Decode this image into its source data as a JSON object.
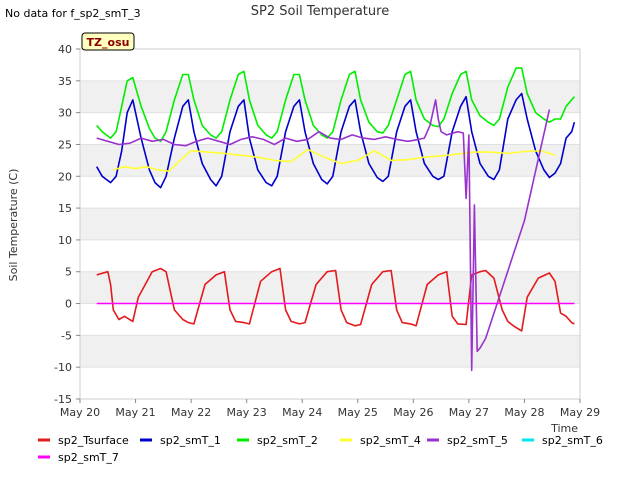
{
  "chart_data": {
    "type": "line",
    "title": "SP2 Soil Temperature",
    "note": "No data for f_sp2_smT_3",
    "badge": "TZ_osu",
    "xlabel": "Time",
    "ylabel": "Soil Temperature (C)",
    "ylim": [
      -15,
      40
    ],
    "yticks": [
      -15,
      -10,
      -5,
      0,
      5,
      10,
      15,
      20,
      25,
      30,
      35,
      40
    ],
    "xlim": [
      0,
      9
    ],
    "xtick_values": [
      0,
      1,
      2,
      3,
      4,
      5,
      6,
      7,
      8,
      9
    ],
    "xtick_labels": [
      "May 20",
      "May 21",
      "May 22",
      "May 23",
      "May 24",
      "May 25",
      "May 26",
      "May 27",
      "May 28",
      "May 29"
    ],
    "grid": "horizontal bands",
    "legend_position": "bottom",
    "series": [
      {
        "name": "sp2_Tsurface",
        "color": "#e41a1c",
        "x": [
          0.3,
          0.5,
          0.55,
          0.6,
          0.7,
          0.8,
          0.95,
          1.05,
          1.3,
          1.45,
          1.55,
          1.7,
          1.85,
          1.95,
          2.05,
          2.25,
          2.45,
          2.6,
          2.7,
          2.8,
          2.95,
          3.05,
          3.25,
          3.45,
          3.6,
          3.7,
          3.8,
          3.95,
          4.05,
          4.25,
          4.45,
          4.6,
          4.7,
          4.8,
          4.95,
          5.05,
          5.25,
          5.45,
          5.6,
          5.7,
          5.8,
          5.95,
          6.05,
          6.25,
          6.45,
          6.6,
          6.7,
          6.8,
          6.95,
          7.05,
          7.2,
          7.3,
          7.45,
          7.6,
          7.7,
          7.8,
          7.95,
          8.05,
          8.25,
          8.45,
          8.55,
          8.65,
          8.75,
          8.85,
          8.9
        ],
        "y": [
          4.5,
          5,
          3,
          -1,
          -2.5,
          -2,
          -2.8,
          1,
          5,
          5.5,
          5,
          -1,
          -2.5,
          -3,
          -3.2,
          3,
          4.5,
          5,
          -1,
          -2.8,
          -3,
          -3.2,
          3.5,
          5,
          5.5,
          -1,
          -2.8,
          -3.2,
          -3,
          3,
          5,
          5.2,
          -1,
          -3,
          -3.5,
          -3.3,
          3,
          5,
          5.2,
          -1,
          -3,
          -3.2,
          -3.5,
          3,
          4.5,
          5,
          -2,
          -3.2,
          -3.3,
          4.5,
          5,
          5.2,
          4,
          -1,
          -2.8,
          -3.5,
          -4.3,
          1,
          4,
          4.8,
          3.5,
          -1.5,
          -2,
          -3,
          -3.2
        ]
      },
      {
        "name": "sp2_smT_1",
        "color": "#0000cc",
        "x": [
          0.3,
          0.4,
          0.55,
          0.65,
          0.75,
          0.85,
          0.95,
          1.1,
          1.25,
          1.35,
          1.45,
          1.55,
          1.7,
          1.85,
          1.95,
          2.05,
          2.2,
          2.35,
          2.45,
          2.55,
          2.7,
          2.85,
          2.95,
          3.05,
          3.2,
          3.35,
          3.45,
          3.55,
          3.7,
          3.85,
          3.95,
          4.05,
          4.2,
          4.35,
          4.45,
          4.55,
          4.7,
          4.85,
          4.95,
          5.05,
          5.2,
          5.35,
          5.45,
          5.55,
          5.7,
          5.85,
          5.95,
          6.05,
          6.2,
          6.35,
          6.45,
          6.55,
          6.7,
          6.85,
          6.95,
          7.05,
          7.2,
          7.35,
          7.45,
          7.55,
          7.7,
          7.85,
          7.95,
          8.05,
          8.2,
          8.35,
          8.45,
          8.55,
          8.65,
          8.75,
          8.85,
          8.9
        ],
        "y": [
          21.5,
          20,
          19,
          20,
          24,
          30,
          32,
          26,
          21,
          19,
          18.2,
          20,
          26,
          31,
          32,
          27,
          22,
          19.5,
          18.5,
          20,
          27,
          31,
          32,
          26,
          21,
          19,
          18.5,
          20,
          27,
          31,
          32,
          27,
          22,
          19.5,
          18.8,
          20,
          27,
          31,
          32,
          27,
          22,
          19.8,
          19.2,
          20,
          27,
          31,
          32,
          27,
          22,
          20,
          19.5,
          20,
          27,
          31,
          32.5,
          27,
          22,
          20,
          19.5,
          21,
          29,
          32,
          33,
          29,
          24,
          21,
          19.8,
          20.5,
          22,
          26,
          27,
          28.5
        ]
      },
      {
        "name": "sp2_smT_2",
        "color": "#00ee00",
        "x": [
          0.3,
          0.4,
          0.55,
          0.65,
          0.75,
          0.85,
          0.95,
          1.1,
          1.25,
          1.35,
          1.45,
          1.55,
          1.7,
          1.85,
          1.95,
          2.05,
          2.2,
          2.35,
          2.45,
          2.55,
          2.7,
          2.85,
          2.95,
          3.05,
          3.2,
          3.35,
          3.45,
          3.55,
          3.7,
          3.85,
          3.95,
          4.05,
          4.2,
          4.35,
          4.45,
          4.55,
          4.7,
          4.85,
          4.95,
          5.05,
          5.2,
          5.35,
          5.45,
          5.55,
          5.7,
          5.85,
          5.95,
          6.05,
          6.2,
          6.35,
          6.45,
          6.55,
          6.7,
          6.85,
          6.95,
          7.05,
          7.2,
          7.35,
          7.45,
          7.55,
          7.7,
          7.85,
          7.95,
          8.05,
          8.2,
          8.35,
          8.45,
          8.55,
          8.65,
          8.75,
          8.85,
          8.9
        ],
        "y": [
          28,
          27,
          26,
          27,
          31,
          35,
          35.5,
          31,
          27.5,
          26,
          25.5,
          27,
          32,
          36,
          36,
          32,
          28,
          26.5,
          26,
          27,
          32,
          36,
          36.5,
          32,
          28,
          26.5,
          26,
          27,
          32,
          36,
          36,
          32,
          28,
          26.5,
          26,
          27,
          32,
          36,
          36.5,
          32,
          28.5,
          27,
          26.8,
          28,
          32,
          36,
          36.5,
          32,
          29,
          28,
          27.8,
          29,
          33,
          36,
          36.5,
          32,
          29.5,
          28.5,
          28,
          29,
          34,
          37,
          37,
          33,
          30,
          29,
          28.5,
          29,
          29,
          31,
          32,
          32.5
        ]
      },
      {
        "name": "sp2_smT_4",
        "color": "#ffff33",
        "x": [
          0.6,
          0.8,
          1.0,
          1.2,
          1.4,
          1.6,
          1.8,
          2.0,
          2.3,
          2.6,
          2.9,
          3.2,
          3.5,
          3.8,
          4.1,
          4.4,
          4.7,
          5.0,
          5.3,
          5.6,
          5.9,
          6.2,
          6.5,
          6.8,
          7.1,
          7.4,
          7.7,
          8.0,
          8.3,
          8.55
        ],
        "y": [
          21,
          21.5,
          21.2,
          21.5,
          21,
          20.8,
          22.5,
          24,
          23.8,
          23.6,
          23.3,
          23,
          22.5,
          22.3,
          24.2,
          23,
          22,
          22.5,
          24,
          22.5,
          22.6,
          23,
          23.2,
          23.5,
          23.8,
          23.8,
          23.6,
          23.9,
          24,
          23.3
        ]
      },
      {
        "name": "sp2_smT_5",
        "color": "#9933cc",
        "x": [
          0.3,
          0.5,
          0.7,
          0.9,
          1.1,
          1.3,
          1.5,
          1.7,
          1.9,
          2.1,
          2.3,
          2.5,
          2.7,
          2.9,
          3.1,
          3.3,
          3.5,
          3.7,
          3.9,
          4.1,
          4.3,
          4.5,
          4.7,
          4.9,
          5.1,
          5.3,
          5.5,
          5.7,
          5.9,
          6.1,
          6.2,
          6.3,
          6.4,
          6.45,
          6.5,
          6.6,
          6.8,
          6.9,
          6.95,
          7.0,
          7.05,
          7.1,
          7.15,
          7.2,
          7.3,
          8.0,
          8.45
        ],
        "y": [
          26,
          25.5,
          25,
          25.2,
          26,
          25.5,
          25.8,
          25,
          24.8,
          25.5,
          26,
          25.5,
          25,
          25.8,
          26.2,
          25.8,
          25,
          26,
          25.5,
          25.8,
          27,
          26,
          25.8,
          26.5,
          26,
          25.8,
          26.2,
          25.8,
          25.5,
          25.8,
          26,
          28,
          32,
          29,
          27,
          26.5,
          27,
          26.8,
          16.5,
          26.5,
          -10.5,
          15.5,
          -7.5,
          -7,
          -5.5,
          13,
          30.5
        ]
      },
      {
        "name": "sp2_smT_6",
        "color": "#00e5ee",
        "x": [],
        "y": []
      },
      {
        "name": "sp2_smT_7",
        "color": "#ff00ff",
        "x": [
          0.3,
          8.9
        ],
        "y": [
          0,
          0
        ]
      }
    ]
  }
}
